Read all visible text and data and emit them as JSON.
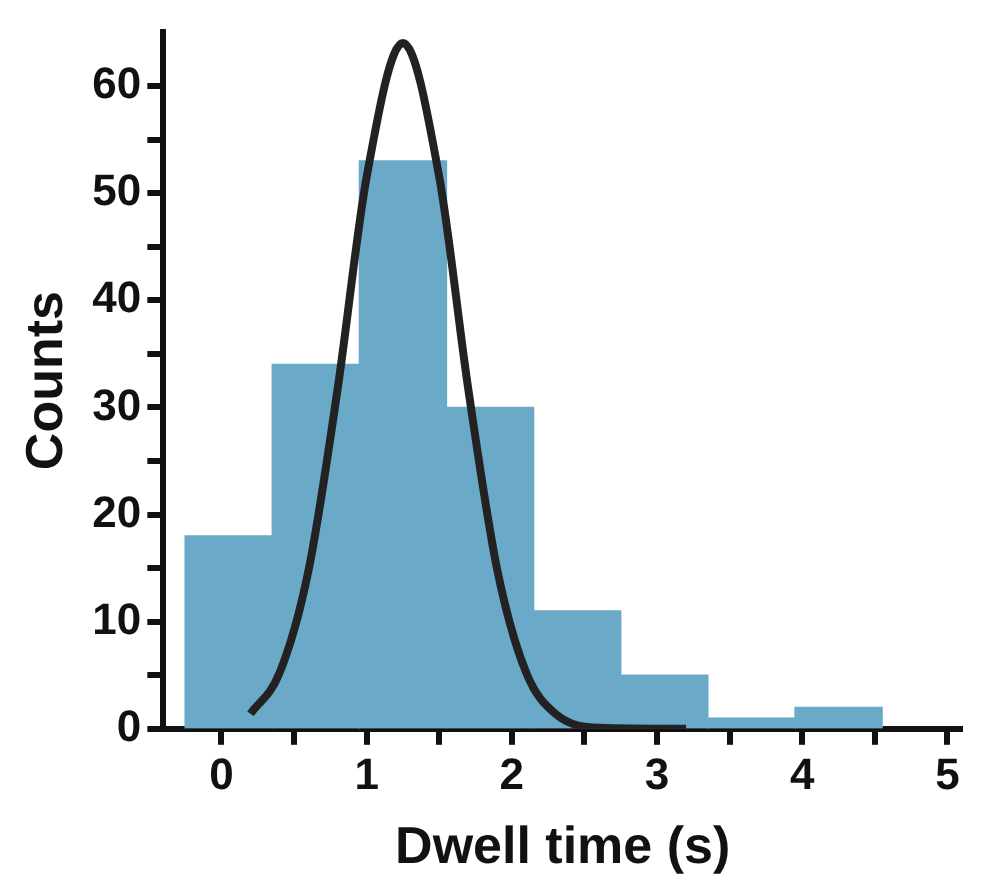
{
  "chart_data": {
    "type": "histogram",
    "xlabel": "Dwell time (s)",
    "ylabel": "Counts",
    "bins": [
      -0.25,
      0.35,
      0.95,
      1.55,
      2.15,
      2.75,
      3.35,
      3.95,
      4.55
    ],
    "values": [
      18,
      34,
      53,
      30,
      11,
      5,
      1,
      2
    ],
    "color": "#6aaac8",
    "series": [
      {
        "type": "line",
        "color": "#222222",
        "x": [
          0.2,
          0.4,
          0.6,
          0.8,
          1.0,
          1.25,
          1.5,
          1.7,
          1.9,
          2.1,
          2.3,
          2.6,
          3.2
        ],
        "values": [
          1.4,
          5.2,
          14.8,
          31.7,
          51.5,
          64,
          51.5,
          31.7,
          14.8,
          5.2,
          1.4,
          0.1,
          0
        ]
      }
    ],
    "xlim": [
      -0.4,
      5.1
    ],
    "xticks": [
      0,
      {
        "value": 0.5,
        "label": null
      },
      1,
      {
        "value": 1.5,
        "label": null
      },
      2,
      {
        "value": 2.5,
        "label": null
      },
      3,
      {
        "value": 3.5,
        "label": null
      },
      4,
      {
        "value": 4.5,
        "label": null
      },
      5
    ],
    "ylim": [
      0,
      65
    ],
    "yticks": [
      0,
      {
        "value": 5,
        "label": null
      },
      10,
      {
        "value": 15,
        "label": null
      },
      20,
      {
        "value": 25,
        "label": null
      },
      30,
      {
        "value": 35,
        "label": null
      },
      40,
      {
        "value": 45,
        "label": null
      },
      50,
      {
        "value": 55,
        "label": null
      },
      60
    ],
    "grid": false,
    "legend": false,
    "line_style": "solid",
    "marker": "none"
  }
}
